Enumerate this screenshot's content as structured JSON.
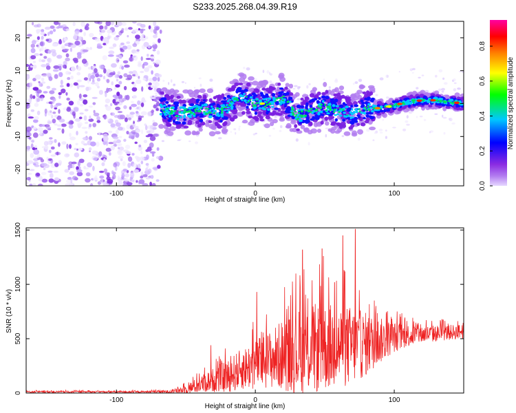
{
  "title": "S233.2025.268.04.39.R19",
  "chart_data": [
    {
      "type": "heatmap",
      "name": "spectrogram",
      "xlabel": "Height of straight line (km)",
      "ylabel": "Frequency (Hz)",
      "xlim": [
        -165,
        150
      ],
      "ylim": [
        -25,
        25
      ],
      "xticks": [
        -100,
        0,
        100
      ],
      "yticks": [
        -20,
        -10,
        0,
        10,
        20
      ],
      "colorbar": {
        "label": "Normalized spectral amplitude",
        "ticks": [
          "0.0",
          "0.2",
          "0.4",
          "0.6",
          "0.8"
        ],
        "range": [
          0,
          0.95
        ],
        "colors": [
          "#e6d8ff",
          "#8a2be2",
          "#0000ff",
          "#00c8ff",
          "#00ff00",
          "#ffff00",
          "#ff8000",
          "#ff0000",
          "#ff00a0"
        ]
      },
      "noise_region_km": [
        -165,
        -68
      ],
      "signal_region_km": [
        -68,
        150
      ],
      "signal_track": {
        "x_km": [
          -68,
          -55,
          -40,
          -25,
          -10,
          0,
          10,
          20,
          25,
          30,
          40,
          50,
          60,
          70,
          80,
          90,
          100,
          110,
          120,
          130,
          140,
          150
        ],
        "freq_hz": [
          -1.5,
          -3,
          -2,
          -2.5,
          2,
          0,
          0,
          2,
          -1,
          -4,
          -2,
          -1,
          -2,
          -3,
          -1,
          -1.5,
          -0.5,
          0.5,
          1,
          1,
          0.5,
          0
        ]
      }
    },
    {
      "type": "line",
      "name": "snr",
      "xlabel": "Height of straight line (km)",
      "ylabel": "SNR (10 * v/v)",
      "xlim": [
        -165,
        150
      ],
      "ylim": [
        0,
        1520
      ],
      "xticks": [
        -100,
        0,
        100
      ],
      "yticks": [
        0,
        500,
        1000,
        1500
      ],
      "color": "#ee2222",
      "envelope": {
        "x": [
          -165,
          -80,
          -60,
          -50,
          -40,
          -30,
          -20,
          -10,
          0,
          10,
          20,
          30,
          40,
          50,
          60,
          70,
          80,
          90,
          100,
          110,
          120,
          130,
          140,
          150
        ],
        "baseline": [
          10,
          10,
          12,
          30,
          70,
          110,
          140,
          200,
          240,
          280,
          320,
          340,
          360,
          380,
          390,
          400,
          420,
          460,
          500,
          520,
          530,
          540,
          550,
          560
        ],
        "amplitude": [
          12,
          12,
          20,
          60,
          110,
          160,
          220,
          270,
          330,
          380,
          470,
          560,
          600,
          580,
          560,
          520,
          420,
          300,
          200,
          150,
          120,
          110,
          100,
          100
        ]
      },
      "peaks": [
        {
          "x": -32,
          "y": 440
        },
        {
          "x": 1,
          "y": 930
        },
        {
          "x": 34,
          "y": 1320
        },
        {
          "x": 49,
          "y": 1260
        },
        {
          "x": 48,
          "y": 1330
        },
        {
          "x": 63,
          "y": 1450
        },
        {
          "x": 72,
          "y": 1510
        },
        {
          "x": 57,
          "y": 1020
        }
      ]
    }
  ]
}
